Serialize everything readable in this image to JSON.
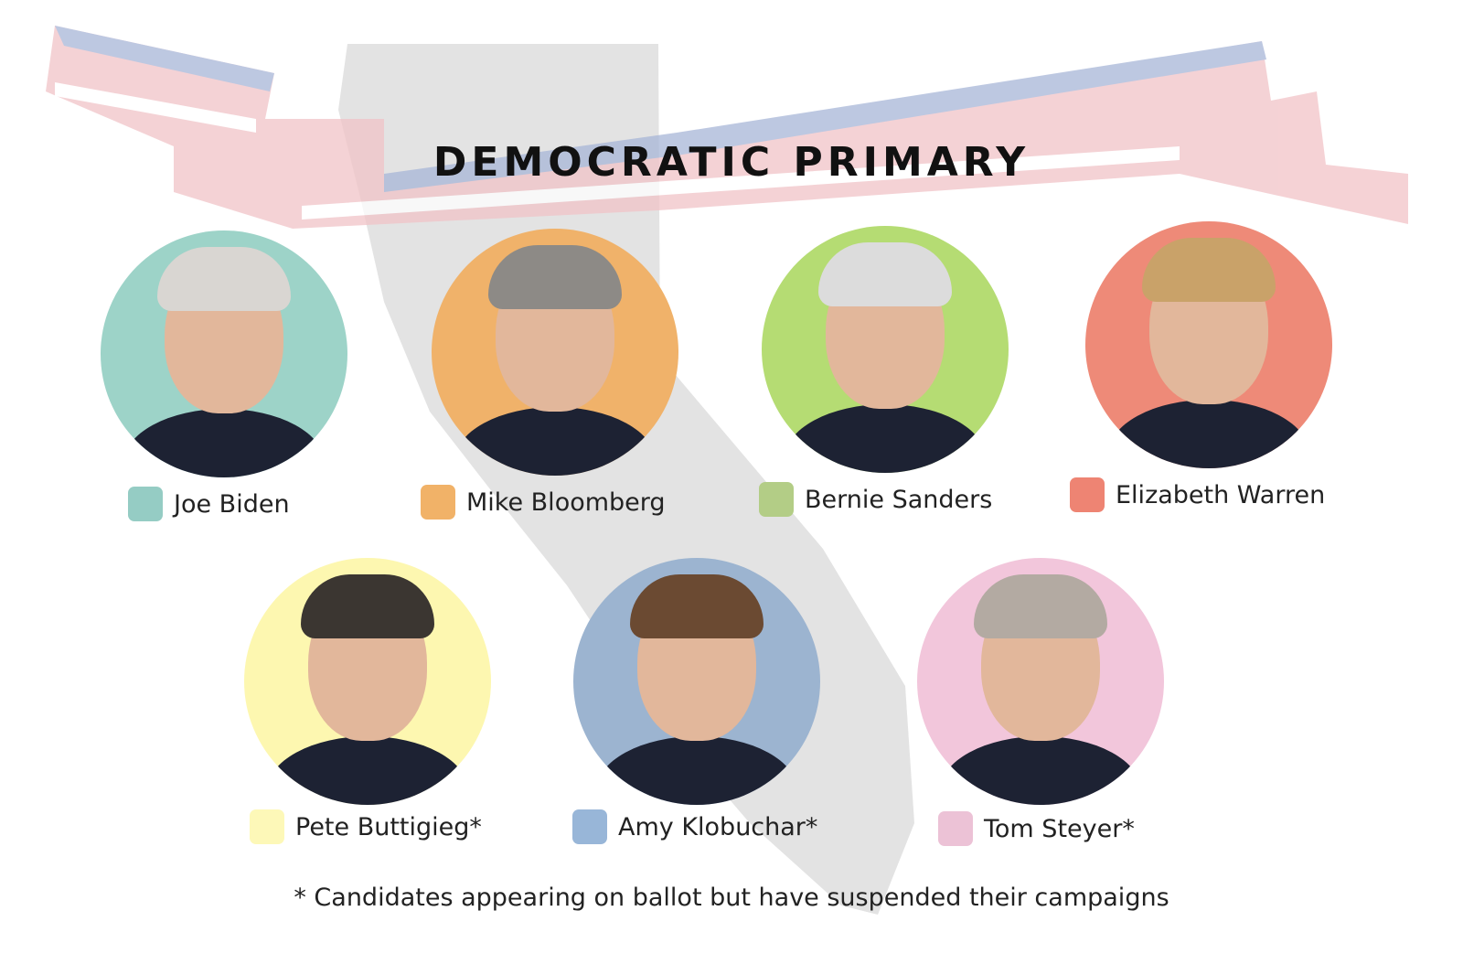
{
  "title": "DEMOCRATIC PRIMARY",
  "candidates": [
    {
      "name": "Joe Biden",
      "color": "#9dd3c8",
      "swatch": "#95ccc4",
      "hair": "#d9d6d2"
    },
    {
      "name": "Mike Bloomberg",
      "color": "#f0b26a",
      "swatch": "#f1b268",
      "hair": "#8d8a86"
    },
    {
      "name": "Bernie Sanders",
      "color": "#b5dc73",
      "swatch": "#b3cd86",
      "hair": "#dcdcdc"
    },
    {
      "name": "Elizabeth Warren",
      "color": "#ee8a78",
      "swatch": "#ee8473",
      "hair": "#c9a269"
    },
    {
      "name": "Pete Buttigieg*",
      "color": "#fdf7b0",
      "swatch": "#fdf8b8",
      "hair": "#3b3631"
    },
    {
      "name": "Amy Klobuchar*",
      "color": "#9cb4d0",
      "swatch": "#98b6d8",
      "hair": "#6b4a32"
    },
    {
      "name": "Tom Steyer*",
      "color": "#f2c6db",
      "swatch": "#ecc2d6",
      "hair": "#b3aaa2"
    }
  ],
  "footnote": "* Candidates appearing on ballot but have suspended their campaigns"
}
